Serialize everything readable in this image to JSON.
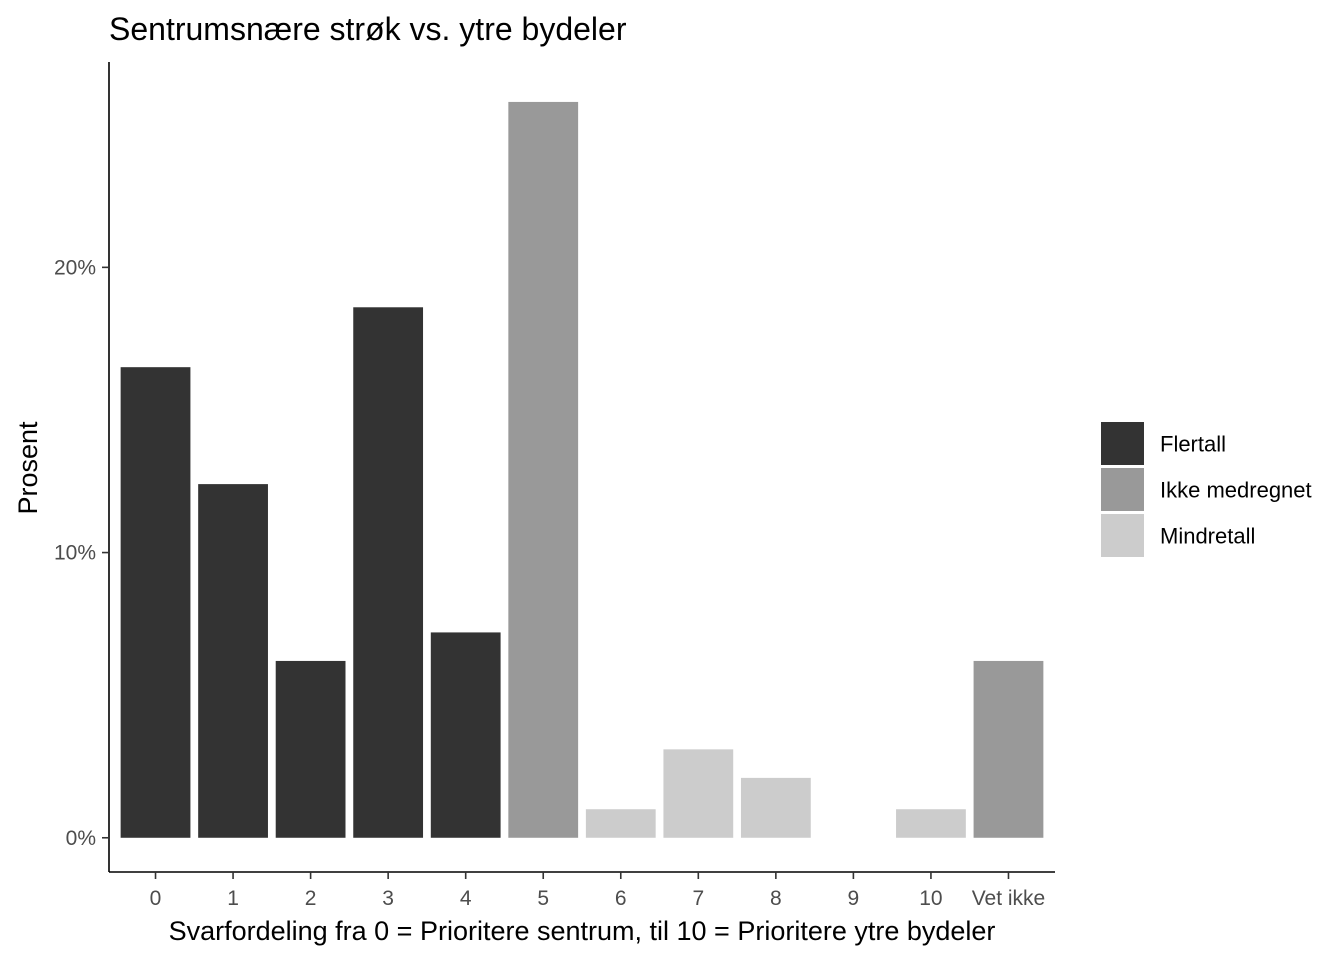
{
  "chart_data": {
    "type": "bar",
    "title": "Sentrumsnære strøk vs. ytre bydeler",
    "xlabel": "Svarfordeling fra 0 = Prioritere sentrum, til 10 = Prioritere ytre bydeler",
    "ylabel": "Prosent",
    "categories": [
      "0",
      "1",
      "2",
      "3",
      "4",
      "5",
      "6",
      "7",
      "8",
      "9",
      "10",
      "Vet ikke"
    ],
    "values": [
      16.5,
      12.4,
      6.2,
      18.6,
      7.2,
      25.8,
      1.0,
      3.1,
      2.1,
      0,
      1.0,
      6.2
    ],
    "groups": [
      "Flertall",
      "Flertall",
      "Flertall",
      "Flertall",
      "Flertall",
      "Ikke medregnet",
      "Mindretall",
      "Mindretall",
      "Mindretall",
      "Mindretall",
      "Mindretall",
      "Ikke medregnet"
    ],
    "ylim": [
      -1.2,
      27.2
    ],
    "yticks": [
      0,
      10,
      20
    ],
    "ytick_labels": [
      "0%",
      "10%",
      "20%"
    ],
    "legend": {
      "position": "right",
      "entries": [
        {
          "name": "Flertall",
          "color": "#333333"
        },
        {
          "name": "Ikke medregnet",
          "color": "#999999"
        },
        {
          "name": "Mindretall",
          "color": "#cccccc"
        }
      ]
    },
    "grid": false
  }
}
